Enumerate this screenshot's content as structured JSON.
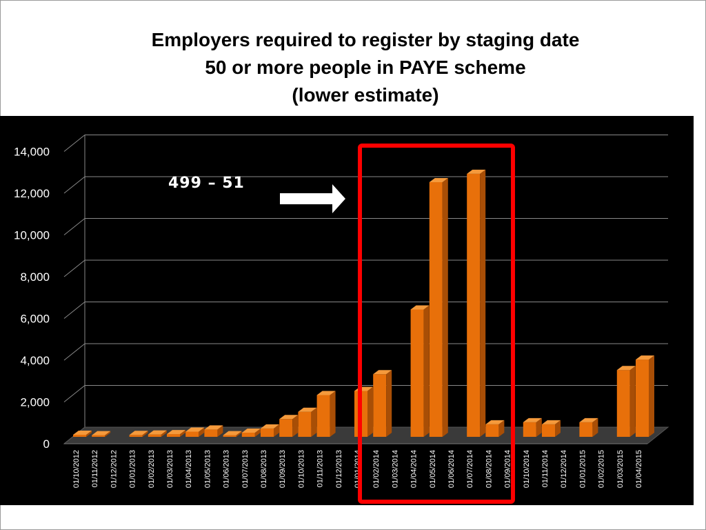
{
  "chart_data": {
    "type": "bar",
    "title": "Employers required to register by staging date",
    "subtitle_lines": [
      "50 or more people in PAYE scheme",
      "(lower estimate)"
    ],
    "xlabel": "",
    "ylabel": "",
    "ylim": [
      0,
      14000
    ],
    "yticks": [
      "0",
      "2,000",
      "4,000",
      "6,000",
      "8,000",
      "10,000",
      "12,000",
      "14,000"
    ],
    "grid": true,
    "legend": "none",
    "bar_color": "#e8700a",
    "categories": [
      "01/10/2012",
      "01/11/2012",
      "01/12/2012",
      "01/01/2013",
      "01/02/2013",
      "01/03/2013",
      "01/04/2013",
      "01/05/2013",
      "01/06/2013",
      "01/07/2013",
      "01/08/2013",
      "01/09/2013",
      "01/10/2013",
      "01/11/2013",
      "01/12/2013",
      "01/01/2014",
      "01/02/2014",
      "01/03/2014",
      "01/04/2014",
      "01/05/2014",
      "01/06/2014",
      "01/07/2014",
      "01/08/2014",
      "01/09/2014",
      "01/10/2014",
      "01/11/2014",
      "01/12/2014",
      "01/01/2015",
      "01/02/2015",
      "01/03/2015",
      "01/04/2015"
    ],
    "values": [
      100,
      80,
      0,
      90,
      110,
      130,
      250,
      350,
      80,
      200,
      400,
      850,
      1200,
      2000,
      0,
      2200,
      3000,
      0,
      6100,
      12200,
      0,
      12600,
      600,
      0,
      700,
      600,
      0,
      700,
      0,
      3200,
      3700
    ],
    "annotation": "499 – 51",
    "highlight_color": "#ff0000"
  }
}
